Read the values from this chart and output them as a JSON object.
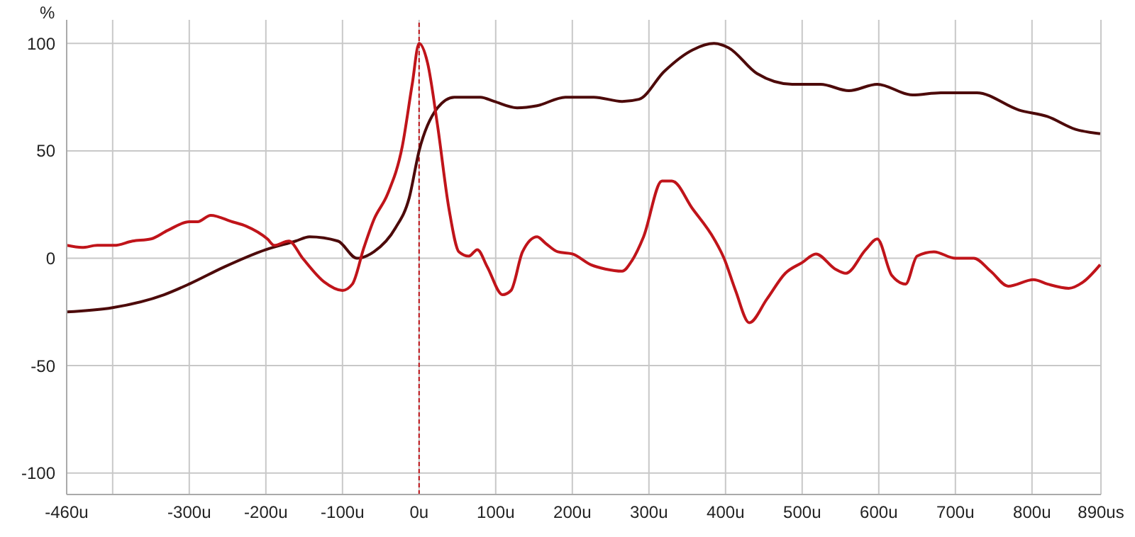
{
  "chart_data": {
    "type": "line",
    "ylabel": "%",
    "xlim": [
      -460,
      890
    ],
    "xticks": [
      {
        "value": -460,
        "label": "-460u"
      },
      {
        "value": -400,
        "label": null
      },
      {
        "value": -300,
        "label": "-300u"
      },
      {
        "value": -200,
        "label": "-200u"
      },
      {
        "value": -100,
        "label": "-100u"
      },
      {
        "value": 0,
        "label": "0u"
      },
      {
        "value": 100,
        "label": "100u"
      },
      {
        "value": 200,
        "label": "200u"
      },
      {
        "value": 300,
        "label": "300u"
      },
      {
        "value": 400,
        "label": "400u"
      },
      {
        "value": 500,
        "label": "500u"
      },
      {
        "value": 600,
        "label": "600u"
      },
      {
        "value": 700,
        "label": "700u"
      },
      {
        "value": 800,
        "label": "800u"
      },
      {
        "value": 890,
        "label": "890us"
      }
    ],
    "ylim": [
      -110,
      111
    ],
    "yticks": [
      -100,
      -50,
      0,
      50,
      100
    ],
    "grid": true,
    "marker": "none",
    "line_style": "solid",
    "ref_lines": [
      {
        "axis": "x",
        "value": 0,
        "color": "#c0141a",
        "line_style": "dashed"
      }
    ],
    "series": [
      {
        "color": "#4d0a0a",
        "x": [
          -460,
          -400,
          -333,
          -300,
          -254,
          -200,
          -161,
          -143,
          -106,
          -81,
          -59,
          -31,
          -13,
          0,
          24,
          46,
          80,
          98,
          128,
          154,
          191,
          228,
          265,
          287,
          320,
          357,
          385,
          404,
          441,
          487,
          524,
          561,
          598,
          644,
          681,
          728,
          783,
          820,
          857,
          889
        ],
        "values": [
          -25,
          -23,
          -17,
          -12,
          -4,
          4,
          8,
          10,
          8,
          0,
          3,
          14,
          28,
          50,
          70,
          75,
          75,
          73,
          70,
          71,
          75,
          75,
          73,
          74,
          87,
          97,
          100,
          98,
          86,
          81,
          81,
          78,
          81,
          76,
          77,
          77,
          69,
          66,
          60,
          58
        ]
      },
      {
        "color": "#c0141a",
        "x": [
          -460,
          -440,
          -420,
          -398,
          -374,
          -350,
          -328,
          -300,
          -289,
          -272,
          -244,
          -226,
          -198,
          -189,
          -170,
          -152,
          -124,
          -100,
          -87,
          -72,
          -59,
          -41,
          -22,
          -9,
          0,
          11,
          24,
          39,
          52,
          65,
          76,
          89,
          109,
          120,
          135,
          154,
          165,
          181,
          200,
          224,
          243,
          265,
          278,
          293,
          317,
          330,
          357,
          385,
          398,
          413,
          431,
          454,
          478,
          500,
          518,
          543,
          557,
          583,
          598,
          617,
          635,
          650,
          672,
          700,
          724,
          746,
          769,
          802,
          820,
          848,
          867,
          889
        ],
        "values": [
          6,
          5,
          6,
          6,
          8,
          9,
          13,
          17,
          17,
          20,
          17,
          15,
          9,
          6,
          8,
          0,
          -11,
          -15,
          -12,
          5,
          18,
          30,
          52,
          81,
          100,
          91,
          62,
          23,
          3,
          1,
          4,
          -4,
          -17,
          -15,
          3,
          10,
          7,
          3,
          2,
          -3,
          -5,
          -6,
          -1,
          10,
          36,
          36,
          23,
          9,
          0,
          -15,
          -30,
          -19,
          -7,
          -2,
          2,
          -5,
          -7,
          4,
          9,
          -8,
          -12,
          1,
          3,
          0,
          0,
          -6,
          -13,
          -10,
          -12,
          -14,
          -11,
          -3
        ]
      }
    ]
  }
}
